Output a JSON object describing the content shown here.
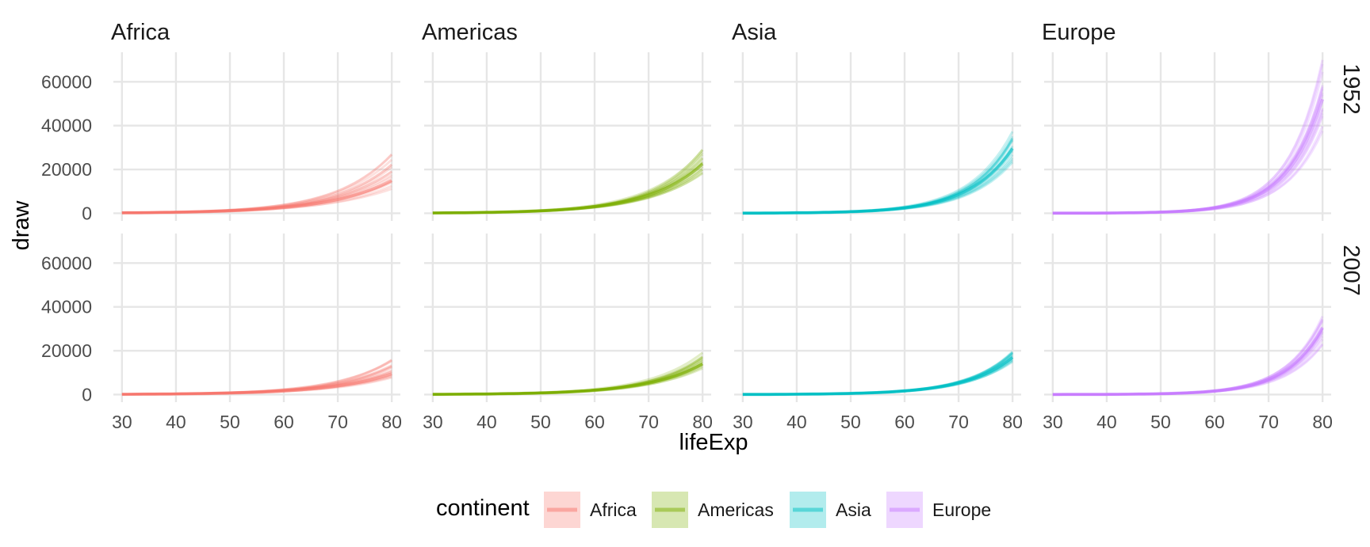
{
  "chart_data": {
    "type": "line",
    "description_kind": "faceted posterior draws (spaghetti lines) of draw vs lifeExp",
    "facet_columns": [
      "Africa",
      "Americas",
      "Asia",
      "Europe"
    ],
    "facet_rows": [
      "1952",
      "2007"
    ],
    "xlabel": "lifeExp",
    "ylabel": "draw",
    "xlim": [
      30,
      80
    ],
    "ylim": [
      0,
      70000
    ],
    "x_ticks": [
      30,
      40,
      50,
      60,
      70,
      80
    ],
    "y_ticks": [
      0,
      20000,
      40000,
      60000
    ],
    "y_tick_labels": [
      "0",
      "20000",
      "40000",
      "60000"
    ],
    "x_tick_labels": [
      "30",
      "40",
      "50",
      "60",
      "70",
      "80"
    ],
    "grid": true,
    "legend": {
      "title": "continent",
      "position": "bottom",
      "entries": [
        "Africa",
        "Americas",
        "Asia",
        "Europe"
      ]
    },
    "colors": {
      "Africa": "#F8766D",
      "Americas": "#7CAE00",
      "Asia": "#00BFC4",
      "Europe": "#C77CFF"
    },
    "curves": {
      "1952": {
        "Africa": {
          "at30": 200,
          "at80": 15000,
          "band80": [
            9000,
            26000
          ]
        },
        "Americas": {
          "at30": 150,
          "at80": 22500,
          "band80": [
            16000,
            29000
          ]
        },
        "Asia": {
          "at30": 60,
          "at80": 29500,
          "band80": [
            21000,
            37000
          ]
        },
        "Europe": {
          "at30": 25,
          "at80": 52000,
          "band80": [
            33000,
            68000
          ]
        }
      },
      "2007": {
        "Africa": {
          "at30": 120,
          "at80": 9500,
          "band80": [
            6000,
            16500
          ]
        },
        "Americas": {
          "at30": 100,
          "at80": 14000,
          "band80": [
            11000,
            18000
          ]
        },
        "Asia": {
          "at30": 50,
          "at80": 17000,
          "band80": [
            14000,
            20000
          ]
        },
        "Europe": {
          "at30": 20,
          "at80": 30500,
          "band80": [
            20000,
            37000
          ]
        }
      }
    }
  }
}
